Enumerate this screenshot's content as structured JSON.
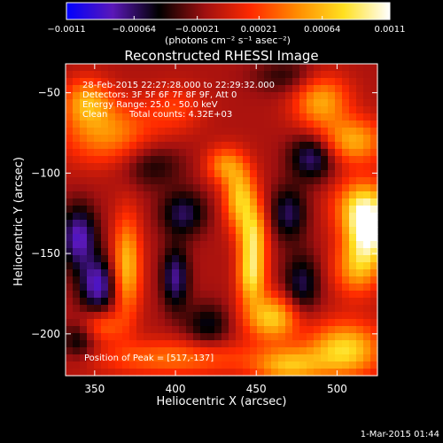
{
  "chart_data": {
    "type": "heatmap",
    "title": "Reconstructed RHESSI Image",
    "xlabel": "Heliocentric X (arcsec)",
    "ylabel": "Heliocentric Y (arcsec)",
    "xlim": [
      332,
      525
    ],
    "ylim": [
      -226,
      -32
    ],
    "x_ticks": [
      350,
      400,
      450,
      500
    ],
    "y_ticks": [
      -50,
      -100,
      -150,
      -200
    ],
    "x_tick_labels": [
      "350",
      "400",
      "450",
      "500"
    ],
    "y_tick_labels": [
      "−50",
      "−100",
      "−150",
      "−200"
    ],
    "colorbar": {
      "min": -0.0011,
      "max": 0.0011,
      "tick_values": [
        -0.0011,
        -0.00064,
        -0.00021,
        0.00021,
        0.00064,
        0.0011
      ],
      "tick_labels": [
        "−0.0011",
        "−0.00064",
        "−0.00021",
        "0.00021",
        "0.00064",
        "0.0011"
      ],
      "units_label": "(photons cm⁻² s⁻¹ asec⁻²)",
      "colors": [
        "#0000ff",
        "#5a18b8",
        "#000000",
        "#a01010",
        "#ff2a00",
        "#ff8c00",
        "#ffe020",
        "#ffffff"
      ]
    },
    "annotations": {
      "time_range": "28-Feb-2015 22:27:28.000 to 22:29:32.000",
      "detectors": "Detectors: 3F 5F 6F 7F 8F 9F, Att 0",
      "energy": "Energy Range: 25.0 - 50.0 keV",
      "algorithm": "Clean",
      "counts": "Total counts: 4.32E+03",
      "peak": "Position of Peak = [517,-137]"
    },
    "peak": {
      "x": 517,
      "y": -137
    },
    "features": [
      {
        "x": 520,
        "y": -137,
        "sx": 10,
        "sy": 14,
        "v": 0.0011
      },
      {
        "x": 515,
        "y": -120,
        "sx": 12,
        "sy": 12,
        "v": 0.0007
      },
      {
        "x": 512,
        "y": -160,
        "sx": 10,
        "sy": 12,
        "v": 0.0006
      },
      {
        "x": 440,
        "y": -115,
        "sx": 7,
        "sy": 14,
        "v": 0.0008
      },
      {
        "x": 448,
        "y": -140,
        "sx": 6,
        "sy": 14,
        "v": 0.00085
      },
      {
        "x": 447,
        "y": -165,
        "sx": 6,
        "sy": 12,
        "v": 0.0008
      },
      {
        "x": 460,
        "y": -190,
        "sx": 12,
        "sy": 10,
        "v": 0.00085
      },
      {
        "x": 430,
        "y": -95,
        "sx": 8,
        "sy": 8,
        "v": 0.00055
      },
      {
        "x": 370,
        "y": -158,
        "sx": 6,
        "sy": 22,
        "v": 0.0008
      },
      {
        "x": 355,
        "y": -195,
        "sx": 9,
        "sy": 7,
        "v": 0.00045
      },
      {
        "x": 358,
        "y": -75,
        "sx": 20,
        "sy": 14,
        "v": 0.0006
      },
      {
        "x": 345,
        "y": -55,
        "sx": 10,
        "sy": 10,
        "v": 0.0006
      },
      {
        "x": 400,
        "y": -60,
        "sx": 12,
        "sy": 10,
        "v": 0.0003
      },
      {
        "x": 490,
        "y": -55,
        "sx": 12,
        "sy": 12,
        "v": 0.0007
      },
      {
        "x": 510,
        "y": -80,
        "sx": 14,
        "sy": 10,
        "v": 0.0007
      },
      {
        "x": 400,
        "y": -215,
        "sx": 35,
        "sy": 8,
        "v": 0.0005
      },
      {
        "x": 505,
        "y": -210,
        "sx": 16,
        "sy": 12,
        "v": 0.0009
      },
      {
        "x": 470,
        "y": -220,
        "sx": 15,
        "sy": 8,
        "v": 0.0007
      },
      {
        "x": 340,
        "y": -140,
        "sx": 8,
        "sy": 14,
        "v": -0.0007
      },
      {
        "x": 352,
        "y": -170,
        "sx": 8,
        "sy": 12,
        "v": -0.0007
      },
      {
        "x": 400,
        "y": -165,
        "sx": 6,
        "sy": 14,
        "v": -0.0006
      },
      {
        "x": 405,
        "y": -125,
        "sx": 10,
        "sy": 10,
        "v": -0.0005
      },
      {
        "x": 485,
        "y": -90,
        "sx": 10,
        "sy": 10,
        "v": -0.0006
      },
      {
        "x": 470,
        "y": -125,
        "sx": 8,
        "sy": 12,
        "v": -0.0005
      },
      {
        "x": 478,
        "y": -170,
        "sx": 8,
        "sy": 14,
        "v": -0.0005
      },
      {
        "x": 385,
        "y": -95,
        "sx": 14,
        "sy": 10,
        "v": -0.00035
      },
      {
        "x": 420,
        "y": -195,
        "sx": 10,
        "sy": 10,
        "v": -0.0004
      },
      {
        "x": 340,
        "y": -205,
        "sx": 8,
        "sy": 8,
        "v": -0.0004
      },
      {
        "x": 470,
        "y": -40,
        "sx": 15,
        "sy": 8,
        "v": -0.0003
      }
    ]
  },
  "footer": {
    "timestamp": "1-Mar-2015 01:44"
  }
}
